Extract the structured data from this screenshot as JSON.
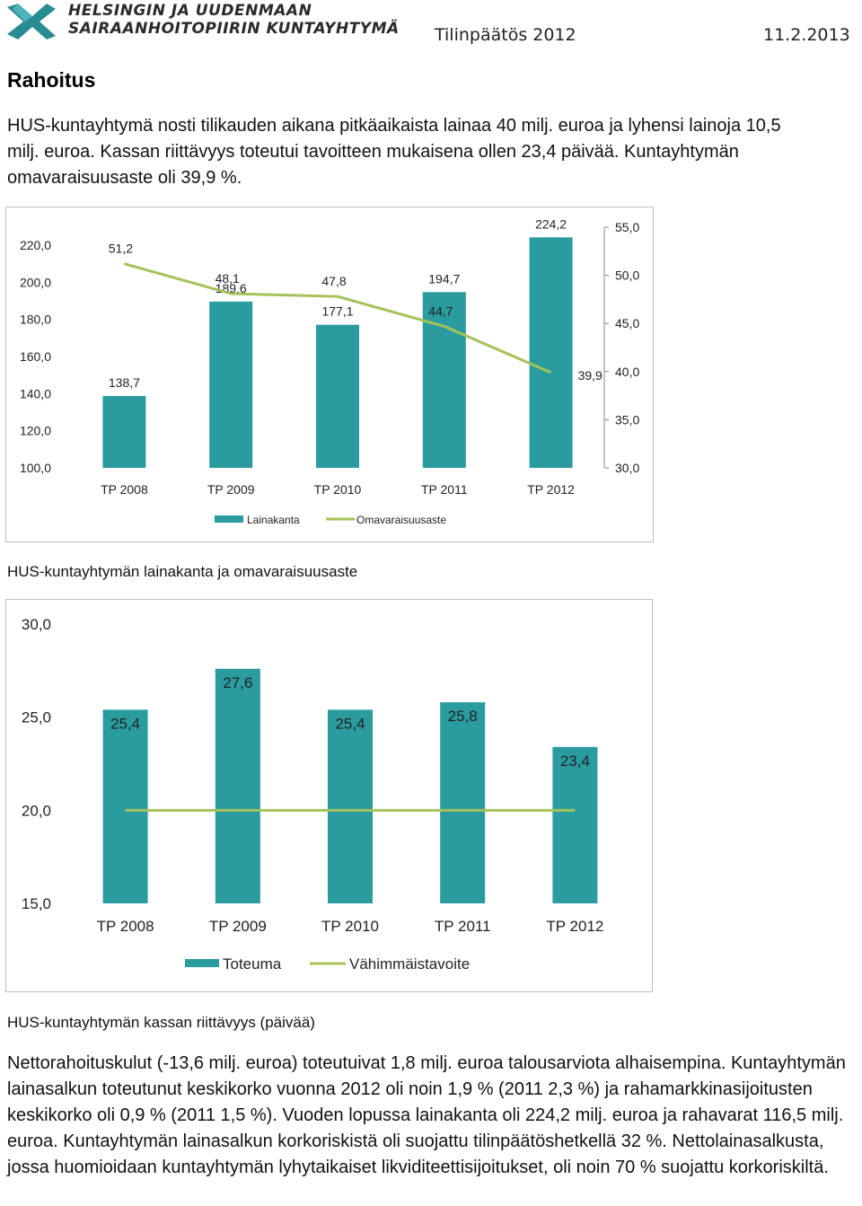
{
  "header": {
    "org_line1": "HELSINGIN JA UUDENMAAN",
    "org_line2": "SAIRAANHOITOPIIRIN KUNTAYHTYMÄ",
    "doc_title": "Tilinpäätös 2012",
    "date": "11.2.2013",
    "logo_icon": "hus-logo-icon",
    "brand_color": "#2a8c93"
  },
  "section_title": "Rahoitus",
  "intro_text": "HUS-kuntayhtymä nosti tilikauden aikana pitkäaikaista lainaa 40 milj. euroa ja lyhensi lainoja 10,5 milj. euroa. Kassan riittävyys toteutui tavoitteen mukaisena ollen 23,4 päivää. Kuntayhtymän omavaraisuusaste oli 39,9 %.",
  "chart1_caption": "HUS-kuntayhtymän lainakanta ja omavaraisuusaste",
  "chart2_caption": "HUS-kuntayhtymän kassan riittävyys (päivää)",
  "closing_text": "Nettorahoituskulut (-13,6 milj. euroa) toteutuivat 1,8 milj. euroa talousarviota alhaisempina. Kuntayhtymän lainasalkun toteutunut keskikorko vuonna 2012 oli noin 1,9 % (2011 2,3 %) ja rahamarkkinasijoitusten keskikorko oli 0,9 % (2011 1,5 %). Vuoden lopussa lainakanta oli 224,2 milj. euroa ja rahavarat 116,5 milj. euroa. Kuntayhtymän lainasalkun korkoriskistä oli suojattu tilinpäätöshetkellä 32 %. Nettolainasalkusta, jossa huomioidaan kuntayhtymän lyhytaikaiset likviditeettisijoitukset, oli noin 70 % suojattu korkoriskiltä.",
  "chart_data": [
    {
      "type": "bar",
      "categories": [
        "TP 2008",
        "TP 2009",
        "TP 2010",
        "TP 2011",
        "TP 2012"
      ],
      "series": [
        {
          "name": "Lainakanta",
          "kind": "bar",
          "axis": "left",
          "values": [
            138.7,
            189.6,
            177.1,
            194.7,
            224.2
          ],
          "labels": [
            "138,7",
            "189,6",
            "177,1",
            "194,7",
            "224,2"
          ],
          "color": "#2a9b9f"
        },
        {
          "name": "Omavaraisuusaste",
          "kind": "line",
          "axis": "right",
          "values": [
            51.2,
            48.1,
            47.8,
            44.7,
            39.9
          ],
          "labels": [
            "51,2",
            "48,1",
            "47,8",
            "44,7",
            "39,9"
          ],
          "color": "#a5c25a"
        }
      ],
      "ylim": [
        100,
        220
      ],
      "yticks": [
        "100,0",
        "120,0",
        "140,0",
        "160,0",
        "180,0",
        "200,0",
        "220,0"
      ],
      "y2lim": [
        30,
        55
      ],
      "y2ticks": [
        "30,0",
        "35,0",
        "40,0",
        "45,0",
        "50,0",
        "55,0"
      ],
      "legend": "bottom",
      "grid": false
    },
    {
      "type": "bar",
      "categories": [
        "TP 2008",
        "TP 2009",
        "TP 2010",
        "TP 2011",
        "TP 2012"
      ],
      "series": [
        {
          "name": "Toteuma",
          "kind": "bar",
          "values": [
            25.4,
            27.6,
            25.4,
            25.8,
            23.4
          ],
          "labels": [
            "25,4",
            "27,6",
            "25,4",
            "25,8",
            "23,4"
          ],
          "color": "#2a9b9f"
        },
        {
          "name": "Vähimmäistavoite",
          "kind": "line",
          "values": [
            20,
            20,
            20,
            20,
            20
          ],
          "color": "#a5c25a"
        }
      ],
      "ylim": [
        15,
        30
      ],
      "yticks": [
        "15,0",
        "20,0",
        "25,0",
        "30,0"
      ],
      "legend": "bottom",
      "grid": false
    }
  ]
}
